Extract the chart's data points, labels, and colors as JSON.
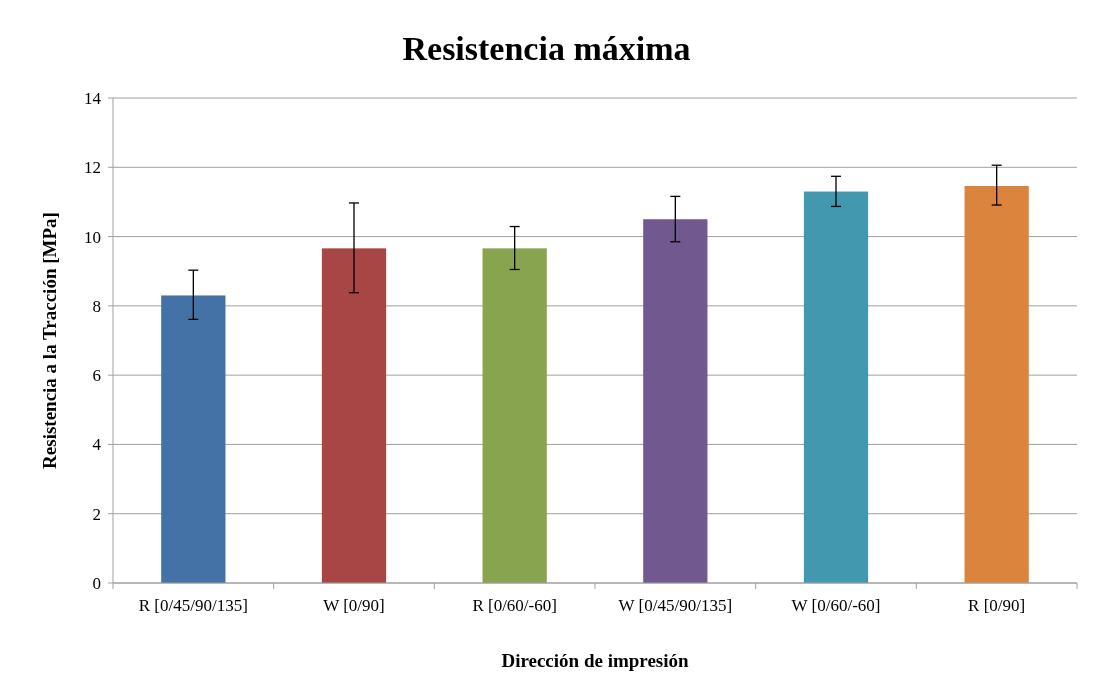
{
  "chart_data": {
    "type": "bar",
    "title": "Resistencia máxima",
    "xlabel": "Dirección de impresión",
    "ylabel": "Resistencia a la  Tracción [MPa]",
    "categories": [
      "R [0/45/90/135]",
      "W [0/90]",
      "R [0/60/-60]",
      "W [0/45/90/135]",
      "W [0/60/-60]",
      "R [0/90]"
    ],
    "values": [
      8.3,
      9.66,
      9.66,
      10.5,
      11.3,
      11.46
    ],
    "colors": [
      "#4471a6",
      "#a84645",
      "#88a44e",
      "#71588f",
      "#4298af",
      "#db843d"
    ],
    "errors": [
      [
        7.61,
        9.03
      ],
      [
        8.38,
        10.97
      ],
      [
        9.05,
        10.29
      ],
      [
        9.85,
        11.16
      ],
      [
        10.87,
        11.74
      ],
      [
        10.91,
        12.06
      ]
    ],
    "ylim": [
      0,
      14
    ],
    "yticks": [
      0,
      2,
      4,
      6,
      8,
      10,
      12,
      14
    ],
    "grid": "y"
  }
}
